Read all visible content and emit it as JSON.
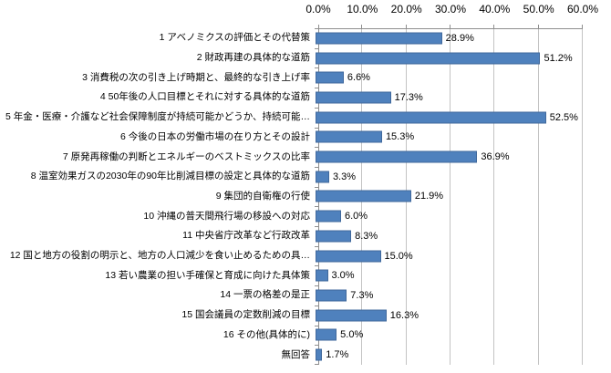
{
  "chart_data": {
    "type": "bar",
    "orientation": "horizontal",
    "title": "",
    "xlabel": "",
    "ylabel": "",
    "xlim": [
      0,
      60
    ],
    "x_ticks": [
      "0.0%",
      "10.0%",
      "20.0%",
      "30.0%",
      "40.0%",
      "50.0%",
      "60.0%"
    ],
    "grid": true,
    "legend": false,
    "value_axis_position": "top",
    "categories": [
      "1  アベノミクスの評価とその代替策",
      "2  財政再建の具体的な道筋",
      "3  消費税の次の引き上げ時期と、最終的な引き上げ率",
      "4  50年後の人口目標とそれに対する具体的な道筋",
      "5  年金・医療・介護など社会保障制度が持続可能かどうか、持続可能…",
      "6  今後の日本の労働市場の在り方とその設計",
      "7  原発再稼働の判断とエネルギーのベストミックスの比率",
      "8  温室効果ガスの2030年の90年比削減目標の設定と具体的な道筋",
      "9  集団的自衛権の行使",
      "10  沖縄の普天間飛行場の移設への対応",
      "11  中央省庁改革など行政改革",
      "12  国と地方の役割の明示と、地方の人口減少を食い止めるための具…",
      "13  若い農業の担い手確保と育成に向けた具体策",
      "14  一票の格差の是正",
      "15  国会議員の定数削減の目標",
      "16  その他(具体的に)",
      "無回答"
    ],
    "values": [
      28.9,
      51.2,
      6.6,
      17.3,
      52.5,
      15.3,
      36.9,
      3.3,
      21.9,
      6.0,
      8.3,
      15.0,
      3.0,
      7.3,
      16.3,
      5.0,
      1.7
    ],
    "value_labels": [
      "28.9%",
      "51.2%",
      "6.6%",
      "17.3%",
      "52.5%",
      "15.3%",
      "36.9%",
      "3.3%",
      "21.9%",
      "6.0%",
      "8.3%",
      "15.0%",
      "3.0%",
      "7.3%",
      "16.3%",
      "5.0%",
      "1.7%"
    ],
    "colors": {
      "bar_fill": "#4F81BD",
      "bar_border": "#41699C",
      "gridline": "#C3C3C3",
      "axis_line": "#8E8E8E",
      "text": "#000000",
      "background": "#FFFFFF"
    }
  }
}
